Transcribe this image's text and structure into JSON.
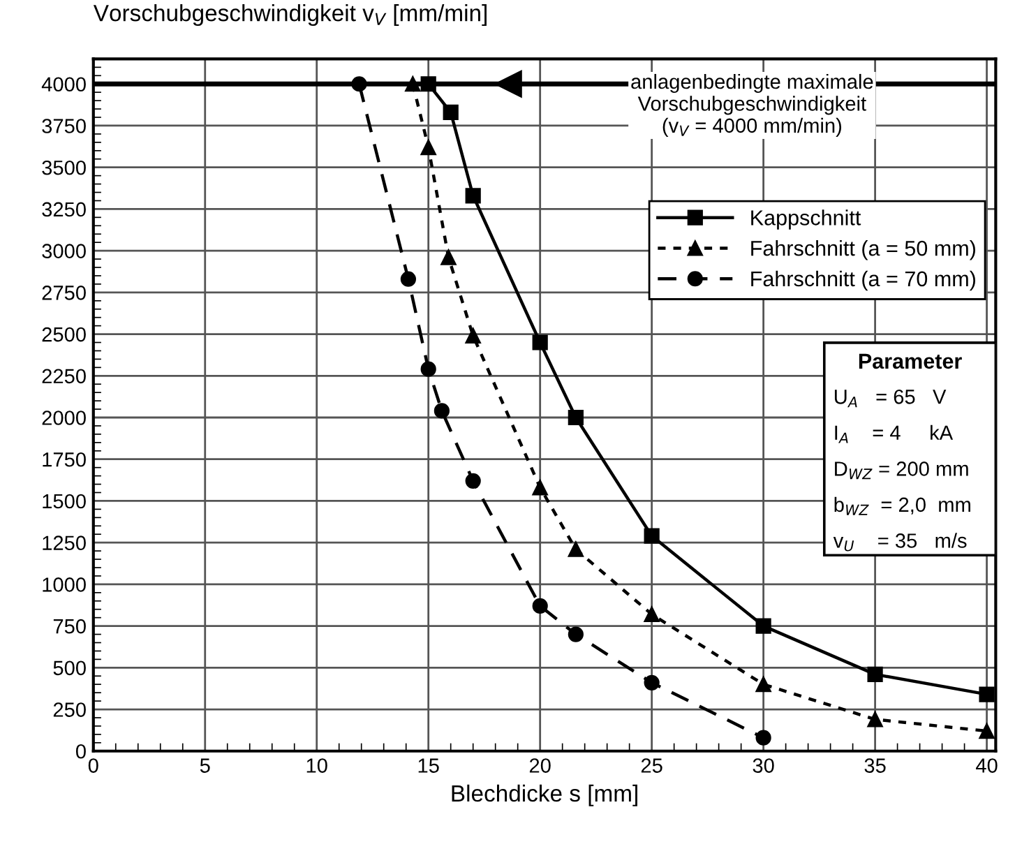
{
  "chart_data": {
    "type": "line",
    "xlabel": "Blechdicke s [mm]",
    "ylabel": "Vorschubgeschwindigkeit v$_{V}$ [mm/min]",
    "xlim": [
      0,
      40.4
    ],
    "xticks": [
      0,
      5,
      10,
      15,
      20,
      25,
      30,
      35,
      40
    ],
    "ylim": [
      0,
      4150
    ],
    "yticks": [
      0,
      250,
      500,
      750,
      1000,
      1250,
      1500,
      1750,
      2000,
      2250,
      2500,
      2750,
      3000,
      3250,
      3500,
      3750,
      4000
    ],
    "grid": true,
    "legend": "top right",
    "series": [
      {
        "name": "Kappschnitt",
        "color": "#000000",
        "marker": "square",
        "line_style": "solid",
        "x": [
          15,
          16,
          17,
          20,
          21.6,
          25,
          30,
          35,
          40
        ],
        "values": [
          4000,
          3830,
          3330,
          2450,
          2000,
          1290,
          750,
          460,
          340
        ]
      },
      {
        "name": "Fahrschnitt (a = 50 mm)",
        "color": "#000000",
        "marker": "triangle",
        "line_style": "dotted",
        "x": [
          14.3,
          15,
          15.9,
          17,
          20,
          21.6,
          25,
          30,
          35,
          40
        ],
        "values": [
          4000,
          3620,
          2960,
          2490,
          1580,
          1210,
          820,
          400,
          190,
          120
        ]
      },
      {
        "name": "Fahrschnitt (a = 70 mm)",
        "color": "#000000",
        "marker": "circle",
        "line_style": "dashed",
        "x": [
          11.9,
          14.1,
          15,
          15.6,
          17,
          20,
          21.6,
          25,
          30
        ],
        "values": [
          4000,
          2830,
          2290,
          2040,
          1620,
          870,
          700,
          410,
          80
        ]
      }
    ],
    "ref_lines": [
      {
        "axis": "y",
        "value": 4000,
        "label": "anlagenbedingte maximale\nVorschubgeschwindigkeit\n(v$_{V}$ = 4000 mm/min)",
        "color": "#000000"
      }
    ],
    "annotations": [
      "Parameter",
      "U$_{A}$   = 65   V",
      "I$_{A}$    = 4     kA",
      "D$_{WZ}$ = 200 mm",
      "b$_{WZ}$  = 2,0  mm",
      "v$_{U}$    = 35   m/s"
    ]
  }
}
